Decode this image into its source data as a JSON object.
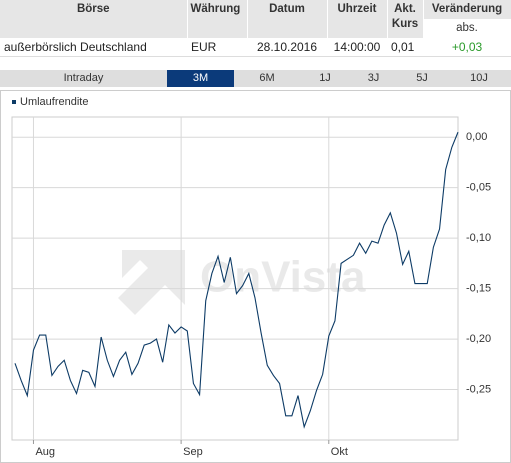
{
  "table": {
    "header": [
      "Börse",
      "Währung",
      "Datum",
      "Uhrzeit",
      "Akt. Kurs",
      "Veränderung"
    ],
    "subheader": "abs.",
    "rows": [
      [
        "außerbörslich Deutschland",
        "EUR",
        "28.10.2016",
        "14:00:00",
        "0,01",
        "+0,03"
      ]
    ]
  },
  "tabs": [
    "Intraday",
    "3M",
    "6M",
    "1J",
    "3J",
    "5J",
    "10J"
  ],
  "selected_tab": "3M",
  "watermark": "OnVista",
  "chart_data": {
    "type": "line",
    "categories": [
      null,
      null,
      null,
      "Aug",
      null,
      null,
      null,
      null,
      null,
      null,
      null,
      null,
      null,
      null,
      null,
      null,
      null,
      null,
      null,
      null,
      null,
      null,
      null,
      null,
      null,
      null,
      null,
      "Sep",
      null,
      null,
      null,
      null,
      null,
      null,
      null,
      null,
      null,
      null,
      null,
      null,
      null,
      null,
      null,
      null,
      null,
      null,
      null,
      null,
      null,
      null,
      null,
      "Okt",
      null,
      null,
      null,
      null,
      null,
      null,
      null,
      null,
      null,
      null,
      null,
      null,
      null,
      null,
      null,
      null,
      null,
      null,
      null,
      null,
      null
    ],
    "series": [
      {
        "name": "Umlaufrendite",
        "color": "#0d3b66",
        "values": [
          -0.224,
          -0.241,
          -0.256,
          -0.211,
          -0.196,
          -0.196,
          -0.236,
          -0.227,
          -0.221,
          -0.241,
          -0.254,
          -0.231,
          -0.233,
          -0.247,
          -0.198,
          -0.221,
          -0.237,
          -0.221,
          -0.213,
          -0.235,
          -0.224,
          -0.206,
          -0.204,
          -0.2,
          -0.223,
          -0.186,
          -0.194,
          -0.188,
          -0.192,
          -0.244,
          -0.255,
          -0.162,
          -0.135,
          -0.118,
          -0.144,
          -0.119,
          -0.155,
          -0.147,
          -0.135,
          -0.159,
          -0.194,
          -0.226,
          -0.236,
          -0.244,
          -0.276,
          -0.276,
          -0.256,
          -0.287,
          -0.271,
          -0.251,
          -0.235,
          -0.197,
          -0.182,
          -0.125,
          -0.121,
          -0.117,
          -0.105,
          -0.115,
          -0.103,
          -0.105,
          -0.087,
          -0.075,
          -0.095,
          -0.126,
          -0.113,
          -0.145,
          -0.145,
          -0.145,
          -0.109,
          -0.091,
          -0.032,
          -0.01,
          0.005
        ]
      }
    ],
    "ylim": [
      -0.3,
      0.02
    ],
    "yticks": [
      {
        "value": 0,
        "label": "0,00"
      },
      {
        "value": -0.05,
        "label": "-0,05"
      },
      {
        "value": -0.1,
        "label": "-0,10"
      },
      {
        "value": -0.15,
        "label": "-0,15"
      },
      {
        "value": -0.2,
        "label": "-0,20"
      },
      {
        "value": -0.25,
        "label": "-0,25"
      }
    ],
    "grid": true
  }
}
